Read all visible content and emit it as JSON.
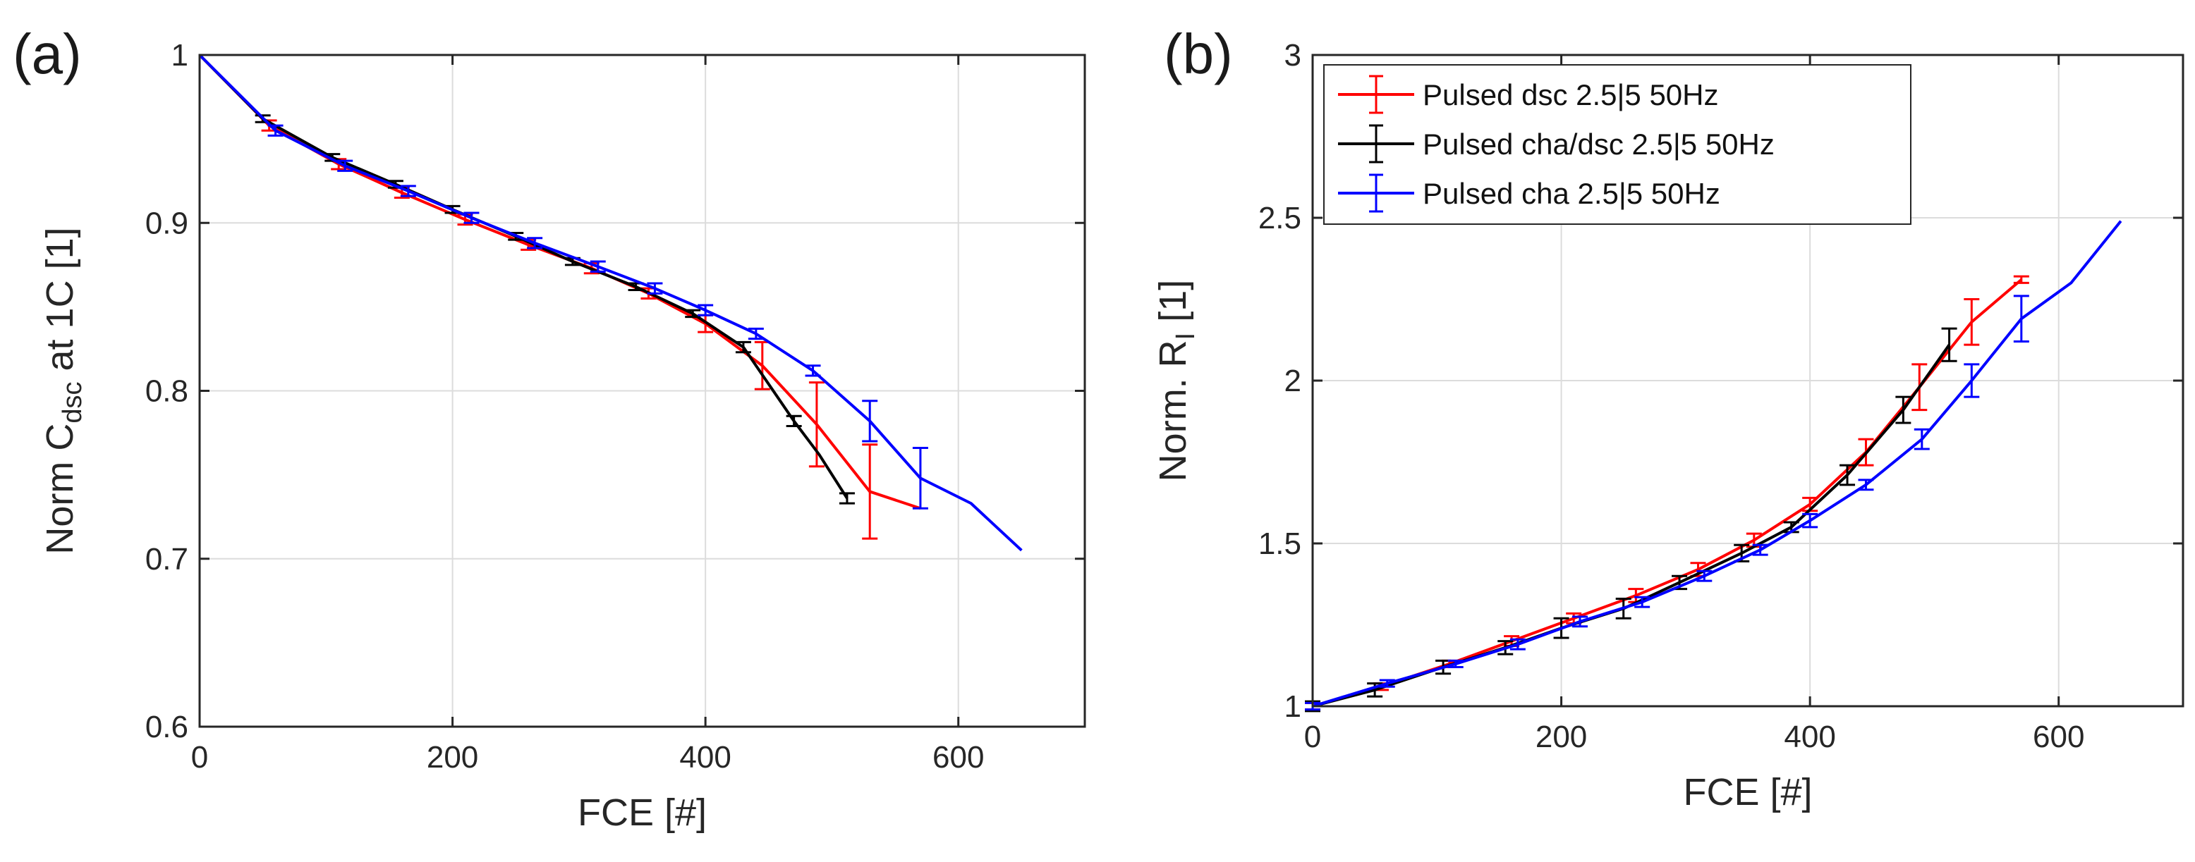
{
  "chart_data": [
    {
      "type": "line",
      "panel_label": "(a)",
      "xlabel": "FCE [#]",
      "ylabel": "Norm C",
      "ylabel_sub": "dsc",
      "ylabel_rest": " at 1C [1]",
      "xlim": [
        0,
        700
      ],
      "ylim": [
        0.6,
        1.0
      ],
      "xticks": [
        0,
        200,
        400,
        600
      ],
      "yticks": [
        0.6,
        0.7,
        0.8,
        0.9,
        1.0
      ],
      "xtick_labels": [
        "0",
        "200",
        "400",
        "600"
      ],
      "ytick_labels": [
        "0.6",
        "0.7",
        "0.8",
        "0.9",
        "1"
      ],
      "grid": true,
      "legend": false,
      "series": [
        {
          "name": "Pulsed dsc 2.5|5 50Hz",
          "color": "#ff0000",
          "x": [
            0,
            55,
            110,
            160,
            210,
            260,
            310,
            355,
            400,
            445,
            488,
            530,
            570
          ],
          "y": [
            1.0,
            0.958,
            0.935,
            0.918,
            0.902,
            0.887,
            0.873,
            0.858,
            0.84,
            0.815,
            0.78,
            0.74,
            0.73
          ],
          "err": [
            0,
            0.003,
            0.003,
            0.003,
            0.003,
            0.003,
            0.003,
            0.003,
            0.005,
            0.014,
            0.025,
            0.028,
            0
          ]
        },
        {
          "name": "Pulsed cha/dsc 2.5|5 50Hz",
          "color": "#000000",
          "x": [
            0,
            50,
            105,
            155,
            200,
            250,
            295,
            345,
            390,
            430,
            470,
            490,
            512
          ],
          "y": [
            1.0,
            0.962,
            0.939,
            0.923,
            0.908,
            0.892,
            0.877,
            0.862,
            0.846,
            0.826,
            0.782,
            0.762,
            0.736
          ],
          "err": [
            0,
            0.002,
            0.002,
            0.002,
            0.002,
            0.002,
            0.002,
            0.002,
            0.002,
            0.003,
            0.003,
            0,
            0.003
          ]
        },
        {
          "name": "Pulsed cha 2.5|5 50Hz",
          "color": "#0000ff",
          "x": [
            0,
            60,
            115,
            165,
            215,
            265,
            315,
            360,
            400,
            440,
            485,
            530,
            570,
            610,
            650
          ],
          "y": [
            1.0,
            0.955,
            0.934,
            0.919,
            0.903,
            0.888,
            0.874,
            0.861,
            0.848,
            0.834,
            0.812,
            0.782,
            0.748,
            0.733,
            0.705
          ],
          "err": [
            0,
            0.003,
            0.003,
            0.003,
            0.003,
            0.003,
            0.003,
            0.003,
            0.003,
            0.003,
            0.003,
            0.012,
            0.018,
            0,
            0
          ]
        }
      ]
    },
    {
      "type": "line",
      "panel_label": "(b)",
      "xlabel": "FCE [#]",
      "ylabel": "Norm. R",
      "ylabel_sub": "I",
      "ylabel_rest": " [1]",
      "xlim": [
        0,
        700
      ],
      "ylim": [
        1.0,
        3.0
      ],
      "xticks": [
        0,
        200,
        400,
        600
      ],
      "yticks": [
        1.0,
        1.5,
        2.0,
        2.5,
        3.0
      ],
      "xtick_labels": [
        "0",
        "200",
        "400",
        "600"
      ],
      "ytick_labels": [
        "1",
        "1.5",
        "2",
        "2.5",
        "3"
      ],
      "grid": true,
      "legend": true,
      "legend_position": "top-left",
      "series": [
        {
          "name": "Pulsed dsc 2.5|5 50Hz",
          "color": "#ff0000",
          "x": [
            0,
            55,
            110,
            160,
            210,
            260,
            310,
            355,
            400,
            445,
            488,
            530,
            570
          ],
          "y": [
            1.0,
            1.06,
            1.13,
            1.2,
            1.27,
            1.34,
            1.42,
            1.51,
            1.62,
            1.78,
            1.98,
            2.18,
            2.31
          ],
          "err": [
            0.01,
            0.01,
            0.01,
            0.015,
            0.015,
            0.02,
            0.02,
            0.02,
            0.02,
            0.04,
            0.07,
            0.07,
            0.01
          ]
        },
        {
          "name": "Pulsed cha/dsc 2.5|5 50Hz",
          "color": "#000000",
          "x": [
            0,
            50,
            105,
            155,
            200,
            250,
            295,
            345,
            385,
            430,
            475,
            512
          ],
          "y": [
            1.0,
            1.05,
            1.12,
            1.18,
            1.24,
            1.3,
            1.38,
            1.47,
            1.55,
            1.71,
            1.91,
            2.11
          ],
          "err": [
            0.015,
            0.02,
            0.02,
            0.02,
            0.03,
            0.03,
            0.02,
            0.025,
            0.015,
            0.03,
            0.04,
            0.05
          ]
        },
        {
          "name": "Pulsed cha 2.5|5 50Hz",
          "color": "#0000ff",
          "x": [
            0,
            60,
            115,
            165,
            215,
            265,
            315,
            360,
            400,
            445,
            490,
            530,
            570,
            610,
            650
          ],
          "y": [
            1.0,
            1.07,
            1.13,
            1.19,
            1.26,
            1.32,
            1.4,
            1.48,
            1.57,
            1.68,
            1.82,
            2.0,
            2.19,
            2.3,
            2.49
          ],
          "err": [
            0.01,
            0.01,
            0.01,
            0.015,
            0.015,
            0.015,
            0.015,
            0.015,
            0.02,
            0.015,
            0.03,
            0.05,
            0.07,
            0,
            0
          ]
        }
      ]
    }
  ]
}
